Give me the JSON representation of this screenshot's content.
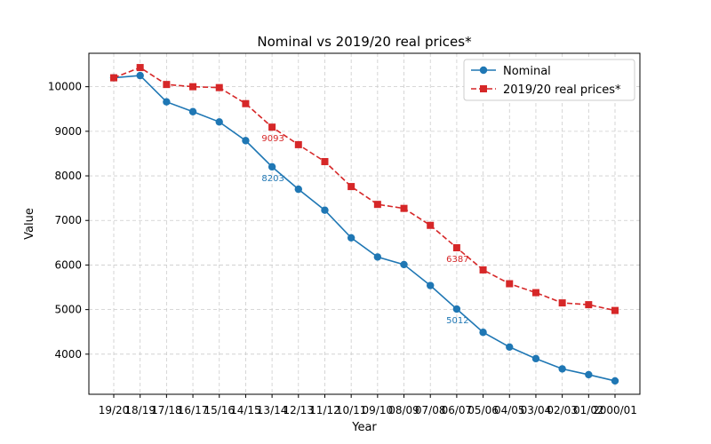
{
  "chart_data": {
    "type": "line",
    "title": "Nominal vs 2019/20 real prices*",
    "xlabel": "Year",
    "ylabel": "Value",
    "categories": [
      "19/20",
      "18/19",
      "17/18",
      "16/17",
      "15/16",
      "14/15",
      "13/14",
      "12/13",
      "11/12",
      "10/11",
      "09/10",
      "08/09",
      "07/08",
      "06/07",
      "05/06",
      "04/05",
      "03/04",
      "02/03",
      "01/02",
      "2000/01"
    ],
    "ylim": [
      3100,
      10750
    ],
    "yticks": [
      4000,
      5000,
      6000,
      7000,
      8000,
      9000,
      10000
    ],
    "grid": true,
    "legend_position": "top-right",
    "series": [
      {
        "name": "Nominal",
        "color": "#1f77b4",
        "style": "solid",
        "marker": "circle",
        "values": [
          10200,
          10250,
          9660,
          9440,
          9210,
          8790,
          8203,
          7700,
          7230,
          6610,
          6180,
          6010,
          5540,
          5012,
          4490,
          4160,
          3900,
          3670,
          3540,
          3400
        ]
      },
      {
        "name": "2019/20 real prices*",
        "color": "#d62728",
        "style": "dashed",
        "marker": "square",
        "values": [
          10200,
          10430,
          10050,
          10000,
          9980,
          9620,
          9093,
          8700,
          8320,
          7760,
          7360,
          7270,
          6890,
          6387,
          5890,
          5580,
          5380,
          5150,
          5110,
          4980
        ]
      }
    ],
    "annotations": [
      {
        "series": 0,
        "index": 6,
        "text": "8203"
      },
      {
        "series": 0,
        "index": 13,
        "text": "5012"
      },
      {
        "series": 1,
        "index": 6,
        "text": "9093"
      },
      {
        "series": 1,
        "index": 13,
        "text": "6387"
      }
    ]
  }
}
